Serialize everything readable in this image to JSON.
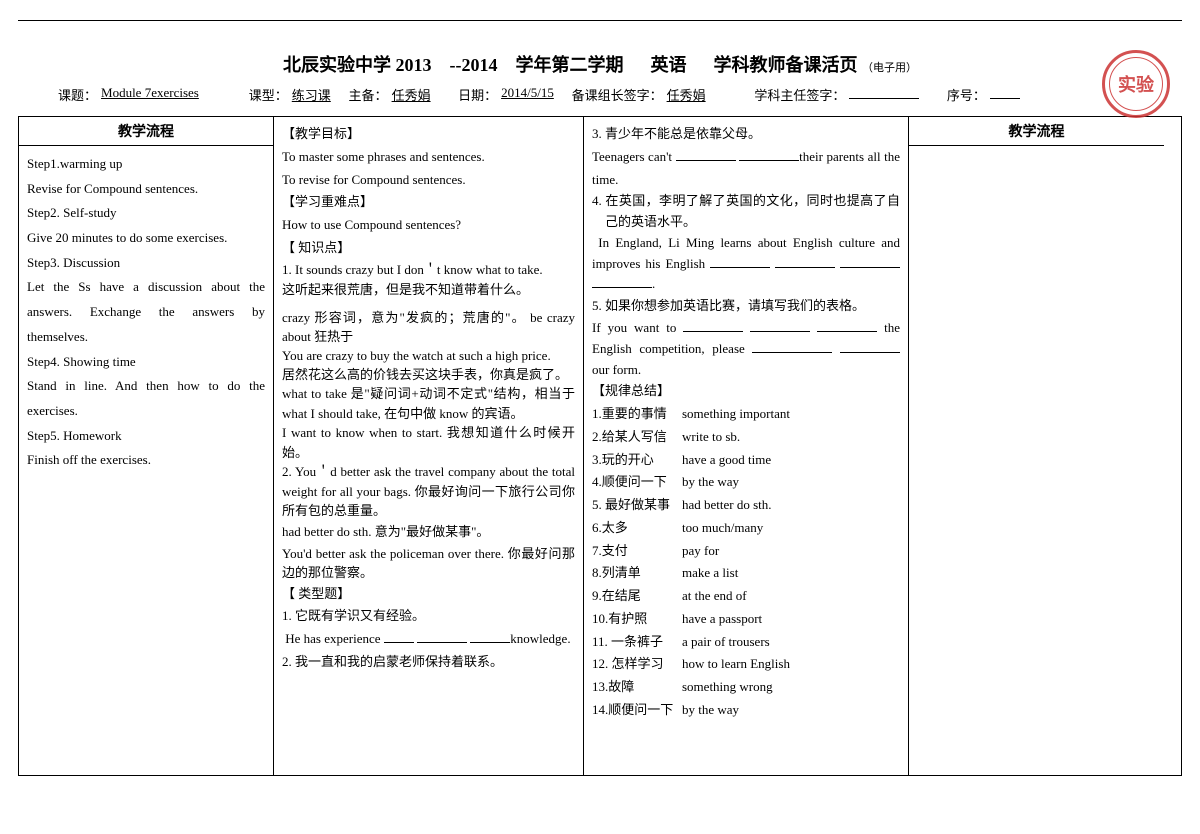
{
  "header": {
    "school": "北辰实验中学 2013",
    "year_sep": "--2014",
    "semester": "学年第二学期",
    "subject": "英语",
    "doc_title": "学科教师备课活页",
    "doc_sub": "（电子用）",
    "topic_label": "课题：",
    "topic_value": "Module 7exercises",
    "type_label": "课型：",
    "type_value": "练习课",
    "author_label": "主备：",
    "author_value": "任秀娟",
    "date_label": "日期：",
    "date_value": "2014/5/15",
    "leader_label": "备课组长签字：",
    "leader_value": "任秀娟",
    "head_label": "学科主任签字：",
    "seq_label": "序号：",
    "stamp": "实验"
  },
  "col_headers": {
    "left": "教学流程",
    "right": "教学流程"
  },
  "col1": {
    "s1_title": "Step1.warming up",
    "s1_body": "Revise for Compound sentences.",
    "s2_title": "Step2. Self-study",
    "s2_body": "Give 20 minutes to do some exercises.",
    "s3_title": "Step3. Discussion",
    "s3_body": "Let the Ss have a discussion about the answers. Exchange the answers by themselves.",
    "s4_title": "Step4. Showing time",
    "s4_body": "Stand in line. And then how to do the exercises.",
    "s5_title": "Step5. Homework",
    "s5_body": "Finish off the exercises."
  },
  "col2": {
    "h1": "【教学目标】",
    "l1": "To master some phrases and sentences.",
    "l2": "To revise for Compound sentences.",
    "h2": "【学习重难点】",
    "l3": "How to use Compound sentences?",
    "h3": "【 知识点】",
    "k1a": "1. It sounds crazy but I don＇t know what to take.",
    "k1b": "这听起来很荒唐，但是我不知道带着什么。",
    "k1c": "crazy 形容词，意为\"发疯的；荒唐的\"。 be crazy about  狂热于",
    "k1d": "You are crazy to buy the watch at such a high price.",
    "k1e": "居然花这么高的价钱去买这块手表，你真是疯了。",
    "k1f": "what to take  是\"疑问词+动词不定式\"结构，相当于 what I should take, 在句中做 know 的宾语。",
    "k1g": "I want to know when to start. 我想知道什么时候开始。",
    "k2a": "2. You＇d better ask the travel company about the total weight for all your bags. 你最好询问一下旅行公司你所有包的总重量。",
    "k2b": "had better do sth. 意为\"最好做某事\"。",
    "k2c": "You'd better ask the policeman over there. 你最好问那边的那位警察。",
    "h4": "【 类型题】",
    "t1": "1.  它既有学识又有经验。",
    "t1e_a": "He has experience ",
    "t1e_b": "knowledge.",
    "t2": "2.  我一直和我的启蒙老师保持着联系。"
  },
  "col3": {
    "t3": "3.  青少年不能总是依靠父母。",
    "t3e_a": "Teenagers can't ",
    "t3e_b": "their parents all the time.",
    "t4": "4.  在英国，李明了解了英国的文化，同时也提高了自己的英语水平。",
    "t4e": "In England, Li Ming learns about English culture and improves his English ",
    "t5": "5.  如果你想参加英语比赛，请填写我们的表格。",
    "t5e_a": "If you want to ",
    "t5e_b": " the English competition, please ",
    "t5e_c": " our form.",
    "h5": "【规律总结】",
    "phrases": [
      {
        "zh": "1.重要的事情",
        "en": "something important"
      },
      {
        "zh": "2.给某人写信",
        "en": "write to sb."
      },
      {
        "zh": "3.玩的开心",
        "en": "have a good time"
      },
      {
        "zh": "4.顺便问一下",
        "en": "by the way"
      },
      {
        "zh": "5. 最好做某事",
        "en": "had better do sth."
      },
      {
        "zh": "6.太多",
        "en": "too much/many"
      },
      {
        "zh": "7.支付",
        "en": "pay for"
      },
      {
        "zh": "8.列清单",
        "en": "make a list"
      },
      {
        "zh": "9.在结尾",
        "en": "at the end of"
      },
      {
        "zh": "10.有护照",
        "en": "have a passport"
      },
      {
        "zh": "11. 一条裤子",
        "en": "a pair of trousers"
      },
      {
        "zh": "12. 怎样学习",
        "en": "how to learn English"
      },
      {
        "zh": "13.故障",
        "en": "something wrong"
      },
      {
        "zh": "14.顺便问一下",
        "en": "by the way"
      }
    ]
  }
}
